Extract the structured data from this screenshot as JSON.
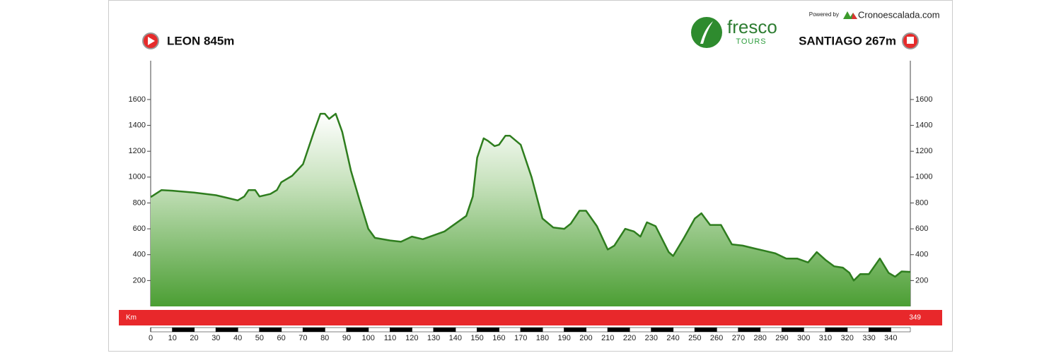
{
  "chart_data": {
    "type": "area",
    "start_label": "LEON 845m",
    "end_label": "SANTIAGO 267m",
    "brand": "fresco",
    "brand_sub": "TOURS",
    "powered_by": "Powered by",
    "provider": "Cronoescalada.com",
    "distance_unit": "Km",
    "distance_total": 349,
    "x": [
      0,
      5,
      10,
      20,
      30,
      35,
      40,
      43,
      45,
      48,
      50,
      55,
      58,
      60,
      65,
      70,
      75,
      78,
      80,
      82,
      85,
      88,
      92,
      96,
      100,
      103,
      110,
      115,
      120,
      125,
      130,
      135,
      140,
      145,
      148,
      150,
      153,
      155,
      158,
      160,
      163,
      165,
      170,
      175,
      180,
      185,
      190,
      193,
      197,
      200,
      205,
      210,
      213,
      218,
      222,
      225,
      228,
      232,
      238,
      240,
      245,
      250,
      253,
      257,
      262,
      267,
      272,
      277,
      282,
      287,
      292,
      297,
      302,
      306,
      310,
      314,
      318,
      321,
      323,
      326,
      330,
      335,
      339,
      342,
      345,
      349
    ],
    "values": [
      845,
      900,
      895,
      880,
      860,
      840,
      820,
      850,
      900,
      900,
      850,
      870,
      900,
      960,
      1010,
      1100,
      1350,
      1490,
      1490,
      1450,
      1490,
      1350,
      1050,
      820,
      600,
      530,
      510,
      500,
      540,
      520,
      550,
      580,
      640,
      700,
      850,
      1150,
      1300,
      1280,
      1240,
      1250,
      1320,
      1320,
      1250,
      1000,
      680,
      610,
      600,
      640,
      740,
      740,
      620,
      440,
      470,
      600,
      580,
      540,
      650,
      620,
      420,
      390,
      530,
      680,
      720,
      630,
      630,
      480,
      470,
      450,
      430,
      410,
      370,
      370,
      340,
      420,
      360,
      310,
      300,
      260,
      200,
      250,
      250,
      370,
      260,
      230,
      270,
      267
    ],
    "color": "#2e7d1e",
    "xlim": [
      0,
      349
    ],
    "xticks": [
      0,
      10,
      20,
      30,
      40,
      50,
      60,
      70,
      80,
      90,
      100,
      110,
      120,
      130,
      140,
      150,
      160,
      170,
      180,
      190,
      200,
      210,
      220,
      230,
      240,
      250,
      260,
      270,
      280,
      290,
      300,
      310,
      320,
      330,
      340
    ],
    "ylim": [
      0,
      1900
    ],
    "yticks": [
      200,
      400,
      600,
      800,
      1000,
      1200,
      1400,
      1600
    ]
  }
}
